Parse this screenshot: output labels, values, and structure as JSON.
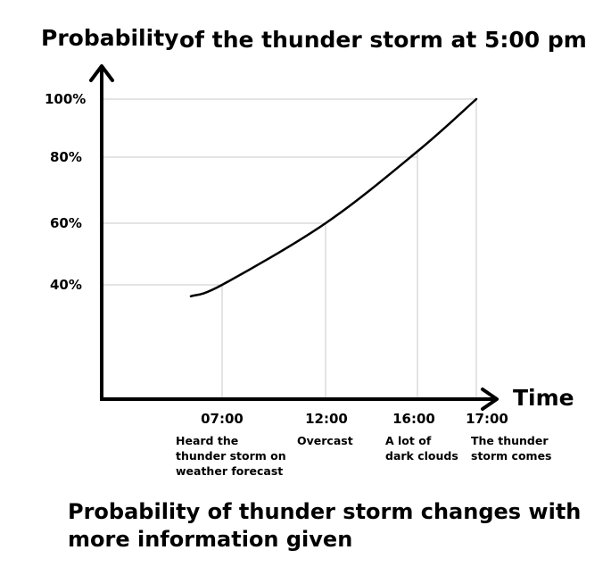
{
  "chart_data": {
    "type": "line",
    "title": "of the thunder storm at 5:00 pm",
    "ylabel": "Probability",
    "xlabel": "Time",
    "ylim": [
      0,
      100
    ],
    "grid": "dropline guides to each labeled point",
    "y_ticks": [
      "40%",
      "60%",
      "80%",
      "100%"
    ],
    "y_tick_values": [
      40,
      60,
      80,
      100
    ],
    "x_ticks": [
      "07:00",
      "12:00",
      "16:00",
      "17:00"
    ],
    "annotations": [
      "Heard the\nthunder storm on\nweather forecast",
      "Overcast",
      "A lot of\ndark clouds",
      "The thunder\nstorm comes"
    ],
    "series": [
      {
        "x": [
          "05:30",
          "07:00",
          "12:00",
          "16:00",
          "17:00"
        ],
        "values": [
          36,
          40,
          60,
          82,
          100
        ]
      }
    ]
  },
  "caption": "Probability of thunder storm changes with more information given"
}
